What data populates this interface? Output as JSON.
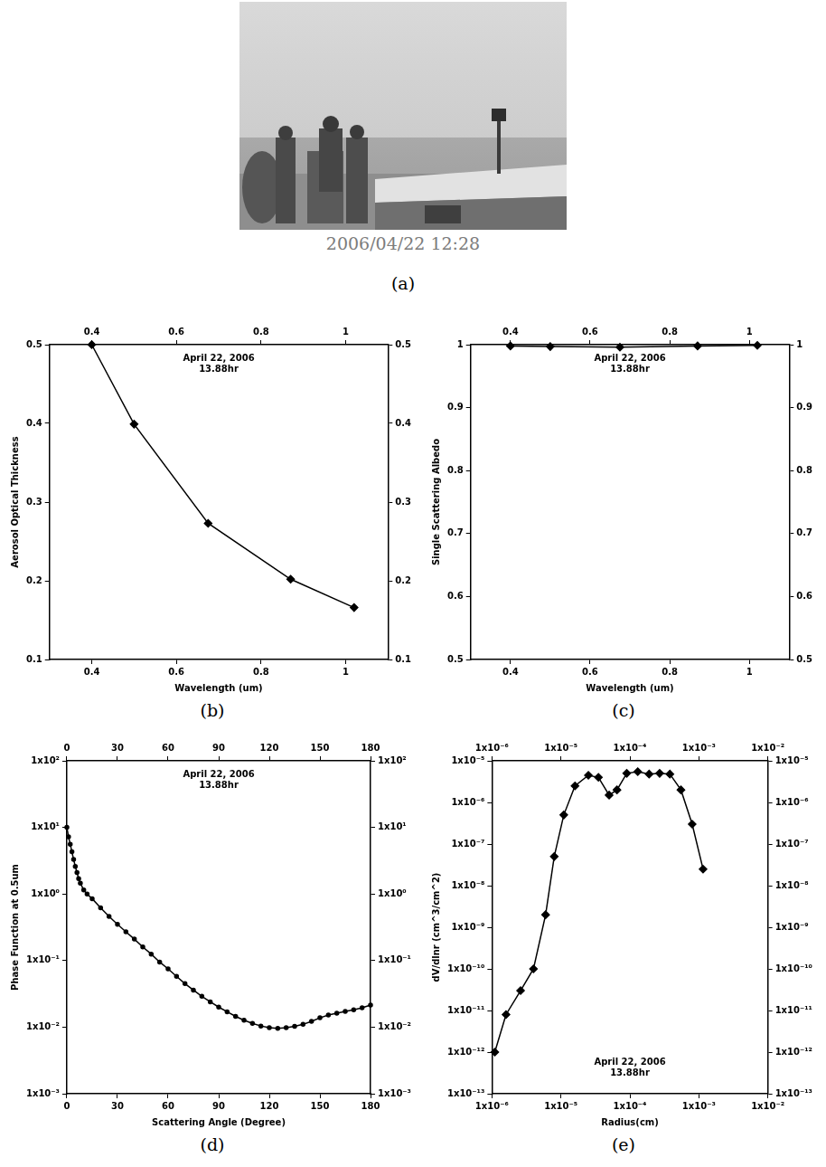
{
  "photo": {
    "caption": "2006/04/22 12:28",
    "panel": "(a)"
  },
  "chart_data": [
    {
      "panel": "(b)",
      "type": "line",
      "annotation": [
        "April 22, 2006",
        "13.88hr"
      ],
      "x_label": "Wavelength (um)",
      "y_label": "Aerosol Optical Thickness",
      "x": [
        0.4,
        0.5,
        0.675,
        0.87,
        1.02
      ],
      "values": [
        0.5,
        0.399,
        0.273,
        0.202,
        0.166
      ],
      "color": "#000000",
      "marker": "diamond",
      "line_style": "solid",
      "xlim": [
        0.3,
        1.1
      ],
      "xticks": [
        0.4,
        0.6,
        0.8,
        1
      ],
      "ylim": [
        0.1,
        0.5
      ],
      "yticks": [
        0.1,
        0.2,
        0.3,
        0.4,
        0.5
      ],
      "grid": false
    },
    {
      "panel": "(c)",
      "type": "line",
      "annotation": [
        "April 22, 2006",
        "13.88hr"
      ],
      "x_label": "Wavelength (um)",
      "y_label": "Single Scattering Albedo",
      "x": [
        0.4,
        0.5,
        0.675,
        0.87,
        1.02
      ],
      "values": [
        0.998,
        0.997,
        0.996,
        0.998,
        0.999
      ],
      "color": "#000000",
      "marker": "diamond",
      "line_style": "solid",
      "xlim": [
        0.3,
        1.1
      ],
      "xticks": [
        0.4,
        0.6,
        0.8,
        1
      ],
      "ylim": [
        0.5,
        1
      ],
      "yticks": [
        0.5,
        0.6,
        0.7,
        0.8,
        0.9,
        1
      ],
      "grid": false
    },
    {
      "panel": "(d)",
      "type": "line",
      "annotation": [
        "April 22, 2006",
        "13.88hr"
      ],
      "x_label": "Scattering Angle (Degree)",
      "y_label": "Phase Function at 0.5um",
      "x": [
        0,
        1,
        2,
        3,
        4,
        5,
        6,
        7,
        8,
        10,
        12,
        15,
        20,
        25,
        30,
        35,
        40,
        45,
        50,
        55,
        60,
        65,
        70,
        75,
        80,
        85,
        90,
        95,
        100,
        105,
        110,
        115,
        120,
        125,
        130,
        135,
        140,
        145,
        150,
        155,
        160,
        165,
        170,
        175,
        180
      ],
      "values": [
        10,
        7.2,
        5.6,
        4.3,
        3.3,
        2.6,
        2.1,
        1.7,
        1.45,
        1.15,
        1,
        0.85,
        0.62,
        0.46,
        0.35,
        0.27,
        0.21,
        0.16,
        0.125,
        0.095,
        0.075,
        0.058,
        0.045,
        0.036,
        0.029,
        0.024,
        0.02,
        0.017,
        0.0145,
        0.0127,
        0.0114,
        0.0104,
        0.0098,
        0.0096,
        0.0098,
        0.0103,
        0.011,
        0.0122,
        0.0138,
        0.0152,
        0.0162,
        0.0172,
        0.0182,
        0.0195,
        0.0215
      ],
      "color": "#000000",
      "marker": "dot",
      "line_style": "solid",
      "log": "y",
      "xlim": [
        0,
        180
      ],
      "xticks": [
        0,
        30,
        60,
        90,
        120,
        150,
        180
      ],
      "ylim": [
        0.001,
        100
      ],
      "yticks": [
        {
          "value": 0.001,
          "label": "1x10⁻³"
        },
        {
          "value": 0.01,
          "label": "1x10⁻²"
        },
        {
          "value": 0.1,
          "label": "1x10⁻¹"
        },
        {
          "value": 1,
          "label": "1x10⁰"
        },
        {
          "value": 10,
          "label": "1x10¹"
        },
        {
          "value": 100,
          "label": "1x10²"
        }
      ],
      "grid": false
    },
    {
      "panel": "(e)",
      "type": "line",
      "annotation": [
        "April 22, 2006",
        "13.88hr"
      ],
      "x_label": "Radius(cm)",
      "y_label": "dV/dlnr (cm^3/cm^2)",
      "x": [
        1.1e-06,
        1.6e-06,
        2.6e-06,
        4e-06,
        6e-06,
        8e-06,
        1.1e-05,
        1.6e-05,
        2.5e-05,
        3.5e-05,
        5e-05,
        6.5e-05,
        9e-05,
        0.00013,
        0.00019,
        0.00027,
        0.00038,
        0.00055,
        0.0008,
        0.00115
      ],
      "values": [
        1e-12,
        8e-12,
        3e-11,
        1e-10,
        2e-09,
        5e-08,
        5e-07,
        2.5e-06,
        4.5e-06,
        4e-06,
        1.5e-06,
        2e-06,
        5e-06,
        5.5e-06,
        4.8e-06,
        5e-06,
        4.8e-06,
        2e-06,
        3e-07,
        2.5e-08
      ],
      "color": "#000000",
      "marker": "diamond",
      "line_style": "solid",
      "log": true,
      "xlim": [
        1e-06,
        0.01
      ],
      "xticks": [
        {
          "value": 1e-06,
          "label": "1x10⁻⁶"
        },
        {
          "value": 1e-05,
          "label": "1x10⁻⁵"
        },
        {
          "value": 0.0001,
          "label": "1x10⁻⁴"
        },
        {
          "value": 0.001,
          "label": "1x10⁻³"
        },
        {
          "value": 0.01,
          "label": "1x10⁻²"
        }
      ],
      "ylim": [
        1e-13,
        1e-05
      ],
      "yticks": [
        {
          "value": 1e-13,
          "label": "1x10⁻¹³"
        },
        {
          "value": 1e-12,
          "label": "1x10⁻¹²"
        },
        {
          "value": 1e-11,
          "label": "1x10⁻¹¹"
        },
        {
          "value": 1e-10,
          "label": "1x10⁻¹⁰"
        },
        {
          "value": 1e-09,
          "label": "1x10⁻⁹"
        },
        {
          "value": 1e-08,
          "label": "1x10⁻⁸"
        },
        {
          "value": 1e-07,
          "label": "1x10⁻⁷"
        },
        {
          "value": 1e-06,
          "label": "1x10⁻⁶"
        },
        {
          "value": 1e-05,
          "label": "1x10⁻⁵"
        }
      ],
      "grid": false
    }
  ]
}
